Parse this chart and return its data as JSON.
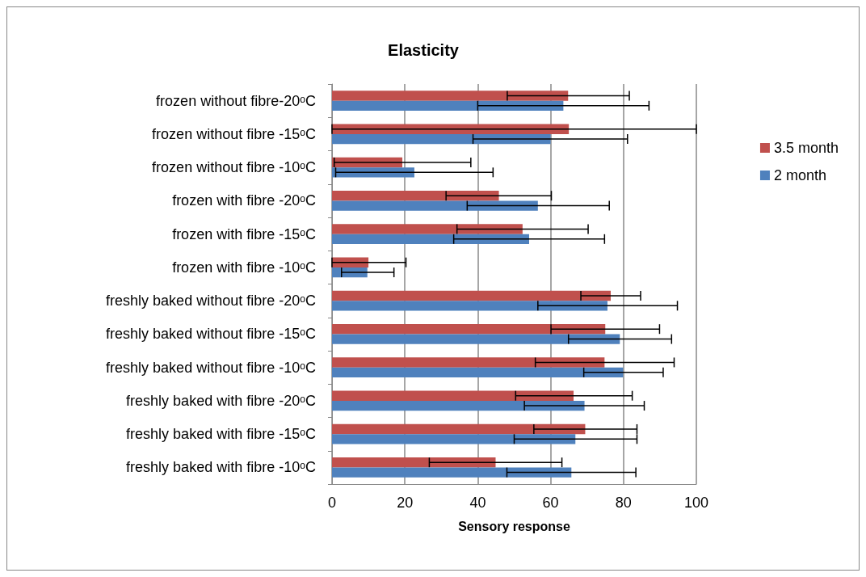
{
  "chart_data": {
    "type": "bar",
    "orientation": "horizontal",
    "title": "Elasticity",
    "xlabel": "Sensory response",
    "categories": [
      "frozen without fibre-20ᵒC",
      "frozen without fibre -15ᵒC",
      "frozen without fibre -10ᵒC",
      "frozen with fibre -20ᵒC",
      "frozen with fibre -15ᵒC",
      "frozen with fibre -10ᵒC",
      "freshly baked without fibre -20ᵒC",
      "freshly baked without fibre -15ᵒC",
      "freshly baked without fibre -10ᵒC",
      "freshly baked with fibre -20ᵒC",
      "freshly baked with fibre -15ᵒC",
      "freshly baked with fibre -10ᵒC"
    ],
    "series": [
      {
        "name": "3.5 month",
        "color": "#c0504d",
        "values": [
          64.8,
          65.0,
          19.3,
          45.8,
          52.3,
          10.0,
          76.5,
          75.0,
          74.8,
          66.3,
          69.5,
          44.9
        ],
        "errors": [
          [
            48.1,
            81.6
          ],
          [
            0,
            100
          ],
          [
            0.6,
            38.1
          ],
          [
            31.3,
            60.2
          ],
          [
            34.3,
            70.3
          ],
          [
            0,
            20.3
          ],
          [
            68.3,
            84.7
          ],
          [
            60.1,
            89.9
          ],
          [
            55.8,
            93.9
          ],
          [
            50.4,
            82.4
          ],
          [
            55.4,
            83.7
          ],
          [
            26.7,
            63.1
          ]
        ]
      },
      {
        "name": "2 month",
        "color": "#4f81bd",
        "values": [
          63.5,
          60.0,
          22.6,
          56.5,
          54.1,
          9.7,
          75.6,
          79.0,
          79.9,
          69.3,
          66.8,
          65.7
        ],
        "errors": [
          [
            40.0,
            87.0
          ],
          [
            38.7,
            81.1
          ],
          [
            1.0,
            44.2
          ],
          [
            37.1,
            76.1
          ],
          [
            33.4,
            74.8
          ],
          [
            2.6,
            17.0
          ],
          [
            56.5,
            94.8
          ],
          [
            64.9,
            93.2
          ],
          [
            69.1,
            90.9
          ],
          [
            52.8,
            85.7
          ],
          [
            50.0,
            83.7
          ],
          [
            48.0,
            83.4
          ]
        ]
      }
    ],
    "xlim": [
      0,
      100
    ],
    "xticks": [
      0,
      20,
      40,
      60,
      80,
      100
    ],
    "grid": "x",
    "legend": "right"
  }
}
